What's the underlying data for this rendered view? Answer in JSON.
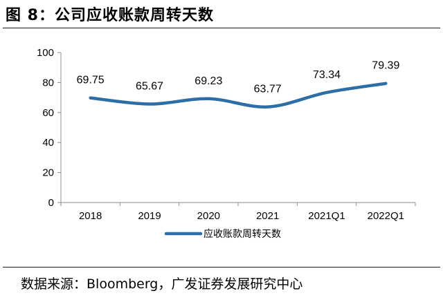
{
  "figure_title": "图 8：公司应收账款周转天数",
  "source_text": "数据来源：Bloomberg，广发证券发展研究中心",
  "chart_data": {
    "type": "line",
    "title": "",
    "xlabel": "",
    "ylabel": "",
    "categories": [
      "2018",
      "2019",
      "2020",
      "2021",
      "2021Q1",
      "2022Q1"
    ],
    "series": [
      {
        "name": "应收账款周转天数",
        "values": [
          69.75,
          65.67,
          69.23,
          63.77,
          73.34,
          79.39
        ],
        "color": "#2E6EA6"
      }
    ],
    "data_labels": [
      "69.75",
      "65.67",
      "69.23",
      "63.77",
      "73.34",
      "79.39"
    ],
    "ylim": [
      0,
      100
    ],
    "yticks": [
      "0",
      "20",
      "40",
      "60",
      "80",
      "100"
    ],
    "grid": false,
    "legend": "bottom",
    "smooth": true
  }
}
